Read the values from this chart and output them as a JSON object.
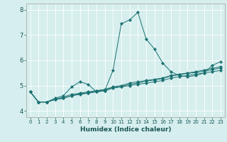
{
  "xlabel": "Humidex (Indice chaleur)",
  "bg_color": "#d6eeee",
  "grid_color": "#ffffff",
  "line_color": "#1a7070",
  "xlim": [
    -0.5,
    23.5
  ],
  "ylim": [
    3.75,
    8.25
  ],
  "xticks": [
    0,
    1,
    2,
    3,
    4,
    5,
    6,
    7,
    8,
    9,
    10,
    11,
    12,
    13,
    14,
    15,
    16,
    17,
    18,
    19,
    20,
    21,
    22,
    23
  ],
  "yticks": [
    4,
    5,
    6,
    7,
    8
  ],
  "lines": [
    {
      "x": [
        0,
        1,
        2,
        3,
        4,
        5,
        6,
        7,
        8,
        9,
        10,
        11,
        12,
        13,
        14,
        15,
        16,
        17,
        18,
        19,
        20,
        21,
        22,
        23
      ],
      "y": [
        4.75,
        4.35,
        4.35,
        4.5,
        4.6,
        4.95,
        5.15,
        5.05,
        4.75,
        4.8,
        5.6,
        7.45,
        7.6,
        7.9,
        6.85,
        6.45,
        5.9,
        5.55,
        5.4,
        5.35,
        5.4,
        5.5,
        5.8,
        5.95
      ]
    },
    {
      "x": [
        0,
        1,
        2,
        3,
        4,
        5,
        6,
        7,
        8,
        9,
        10,
        11,
        12,
        13,
        14,
        15,
        16,
        17,
        18,
        19,
        20,
        21,
        22,
        23
      ],
      "y": [
        4.75,
        4.35,
        4.35,
        4.45,
        4.5,
        4.6,
        4.65,
        4.7,
        4.75,
        4.8,
        4.9,
        4.95,
        5.0,
        5.05,
        5.1,
        5.15,
        5.2,
        5.3,
        5.35,
        5.4,
        5.45,
        5.5,
        5.55,
        5.6
      ]
    },
    {
      "x": [
        0,
        1,
        2,
        3,
        4,
        5,
        6,
        7,
        8,
        9,
        10,
        11,
        12,
        13,
        14,
        15,
        16,
        17,
        18,
        19,
        20,
        21,
        22,
        23
      ],
      "y": [
        4.75,
        4.35,
        4.35,
        4.45,
        4.55,
        4.65,
        4.7,
        4.75,
        4.8,
        4.85,
        4.95,
        5.0,
        5.1,
        5.15,
        5.2,
        5.25,
        5.3,
        5.4,
        5.45,
        5.5,
        5.55,
        5.62,
        5.68,
        5.75
      ]
    },
    {
      "x": [
        0,
        1,
        2,
        3,
        4,
        5,
        6,
        7,
        8,
        9,
        10,
        11,
        12,
        13,
        14,
        15,
        16,
        17,
        18,
        19,
        20,
        21,
        22,
        23
      ],
      "y": [
        4.75,
        4.35,
        4.35,
        4.45,
        4.5,
        4.6,
        4.68,
        4.72,
        4.78,
        4.83,
        4.92,
        4.97,
        5.05,
        5.1,
        5.18,
        5.22,
        5.28,
        5.38,
        5.43,
        5.48,
        5.52,
        5.57,
        5.63,
        5.7
      ]
    }
  ]
}
